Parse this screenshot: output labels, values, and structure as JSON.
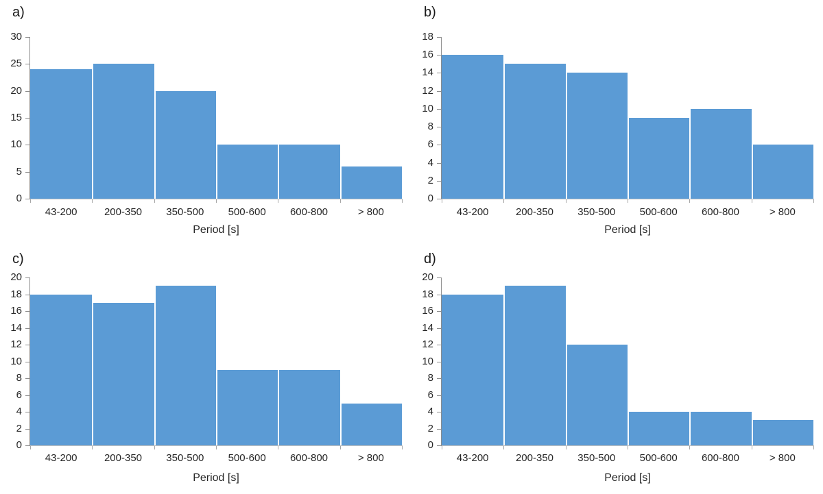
{
  "figure": {
    "background": "#FFFFFF",
    "description_title": ""
  },
  "colors": {
    "bar_fill": "#5B9BD5",
    "bar_separator": "#FFFFFF",
    "y_axis_line": "#8C8C8C",
    "x_axis_line": "#BFBFBF",
    "y_tick_mark": "#8C8C8C",
    "x_tick_mark": "#A6A6A6",
    "text": "#262626"
  },
  "chart_data": [
    {
      "panel_label": "a)",
      "type": "bar",
      "categories": [
        "43-200",
        "200-350",
        "350-500",
        "500-600",
        "600-800",
        "> 800"
      ],
      "values": [
        24,
        25,
        20,
        10,
        10,
        6
      ],
      "title": "",
      "xlabel": "Period [s]",
      "ylabel": "",
      "ylim": [
        0,
        30
      ],
      "ytick_step": 5,
      "grid": false,
      "legend": false
    },
    {
      "panel_label": "b)",
      "type": "bar",
      "categories": [
        "43-200",
        "200-350",
        "350-500",
        "500-600",
        "600-800",
        "> 800"
      ],
      "values": [
        16,
        15,
        14,
        9,
        10,
        6
      ],
      "title": "",
      "xlabel": "Period [s]",
      "ylabel": "",
      "ylim": [
        0,
        18
      ],
      "ytick_step": 2,
      "grid": false,
      "legend": false
    },
    {
      "panel_label": "c)",
      "type": "bar",
      "categories": [
        "43-200",
        "200-350",
        "350-500",
        "500-600",
        "600-800",
        "> 800"
      ],
      "values": [
        18,
        17,
        19,
        9,
        9,
        5
      ],
      "title": "",
      "xlabel": "Period [s]",
      "ylabel": "",
      "ylim": [
        0,
        20
      ],
      "ytick_step": 2,
      "grid": false,
      "legend": false
    },
    {
      "panel_label": "d)",
      "type": "bar",
      "categories": [
        "43-200",
        "200-350",
        "350-500",
        "500-600",
        "600-800",
        "> 800"
      ],
      "values": [
        18,
        19,
        12,
        4,
        4,
        3
      ],
      "title": "",
      "xlabel": "Period [s]",
      "ylabel": "",
      "ylim": [
        0,
        20
      ],
      "ytick_step": 2,
      "grid": false,
      "legend": false
    }
  ]
}
